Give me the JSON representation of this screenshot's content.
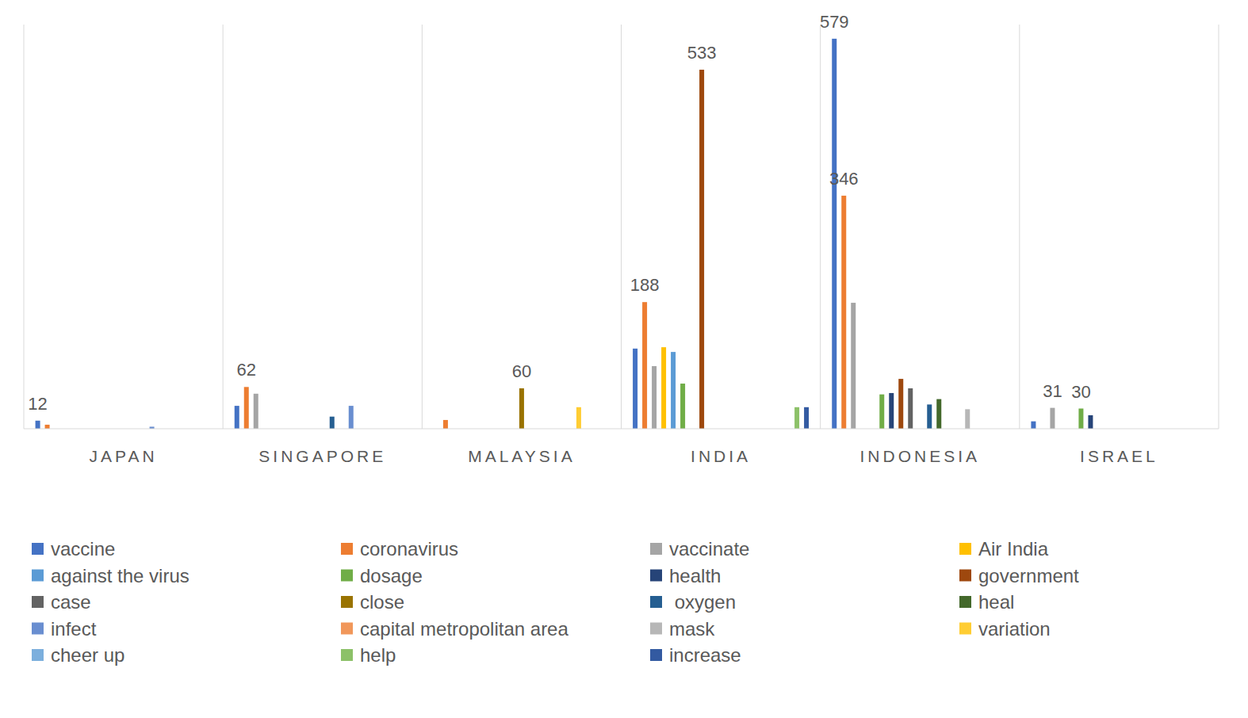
{
  "chart_data": {
    "type": "bar",
    "categories": [
      "JAPAN",
      "SINGAPORE",
      "MALAYSIA",
      "INDIA",
      "INDONESIA",
      "ISRAEL"
    ],
    "ylim": [
      0,
      600
    ],
    "tick_labels": "x",
    "legend": "bottom",
    "data_labels": true,
    "series": [
      {
        "name": "vaccine",
        "color": "#4472c4",
        "values": [
          12,
          34,
          0,
          119,
          579,
          11
        ],
        "value_labels": [
          "12",
          null,
          null,
          null,
          "579",
          null
        ]
      },
      {
        "name": "coronavirus",
        "color": "#ed7d31",
        "values": [
          6,
          62,
          13,
          188,
          346,
          0
        ],
        "value_labels": [
          null,
          "62",
          null,
          "188",
          "346",
          null
        ]
      },
      {
        "name": "vaccinate",
        "color": "#a5a5a5",
        "values": [
          0,
          52,
          0,
          93,
          187,
          31
        ],
        "value_labels": [
          null,
          null,
          null,
          null,
          null,
          "31"
        ]
      },
      {
        "name": "Air India",
        "color": "#ffc000",
        "values": [
          0,
          0,
          0,
          121,
          0,
          0
        ]
      },
      {
        "name": "against the virus",
        "color": "#5b9bd5",
        "values": [
          0,
          0,
          0,
          114,
          0,
          0
        ]
      },
      {
        "name": "dosage",
        "color": "#70ad47",
        "values": [
          0,
          0,
          0,
          67,
          51,
          30
        ],
        "value_labels": [
          null,
          null,
          null,
          null,
          null,
          "30"
        ]
      },
      {
        "name": "health",
        "color": "#264478",
        "values": [
          0,
          0,
          0,
          0,
          53,
          20
        ]
      },
      {
        "name": "government",
        "color": "#9e480e",
        "values": [
          0,
          0,
          0,
          533,
          74,
          0
        ],
        "value_labels": [
          null,
          null,
          null,
          "533",
          null,
          null
        ]
      },
      {
        "name": "case",
        "color": "#636363",
        "values": [
          0,
          0,
          0,
          0,
          60,
          0
        ]
      },
      {
        "name": "close",
        "color": "#997300",
        "values": [
          0,
          0,
          60,
          0,
          0,
          0
        ],
        "value_labels": [
          null,
          null,
          "60",
          null,
          null,
          null
        ]
      },
      {
        "name": " oxygen",
        "color": "#255e91",
        "values": [
          0,
          18,
          0,
          0,
          36,
          0
        ]
      },
      {
        "name": "heal",
        "color": "#43682b",
        "values": [
          0,
          0,
          0,
          0,
          44,
          0
        ]
      },
      {
        "name": "infect",
        "color": "#698ed0",
        "values": [
          3,
          34,
          0,
          0,
          0,
          0
        ]
      },
      {
        "name": "capital metropolitan area",
        "color": "#f1975a",
        "values": [
          0,
          0,
          0,
          0,
          0,
          0
        ]
      },
      {
        "name": "mask",
        "color": "#b7b7b7",
        "values": [
          0,
          0,
          0,
          0,
          29,
          0
        ]
      },
      {
        "name": "variation",
        "color": "#ffcd33",
        "values": [
          0,
          0,
          32,
          0,
          0,
          0
        ]
      },
      {
        "name": "cheer up",
        "color": "#7cafdd",
        "values": [
          0,
          0,
          0,
          0,
          0,
          0
        ]
      },
      {
        "name": "help",
        "color": "#8cc168",
        "values": [
          0,
          0,
          0,
          32,
          0,
          0
        ]
      },
      {
        "name": "increase",
        "color": "#335aa1",
        "values": [
          0,
          0,
          0,
          32,
          0,
          0
        ]
      }
    ]
  }
}
